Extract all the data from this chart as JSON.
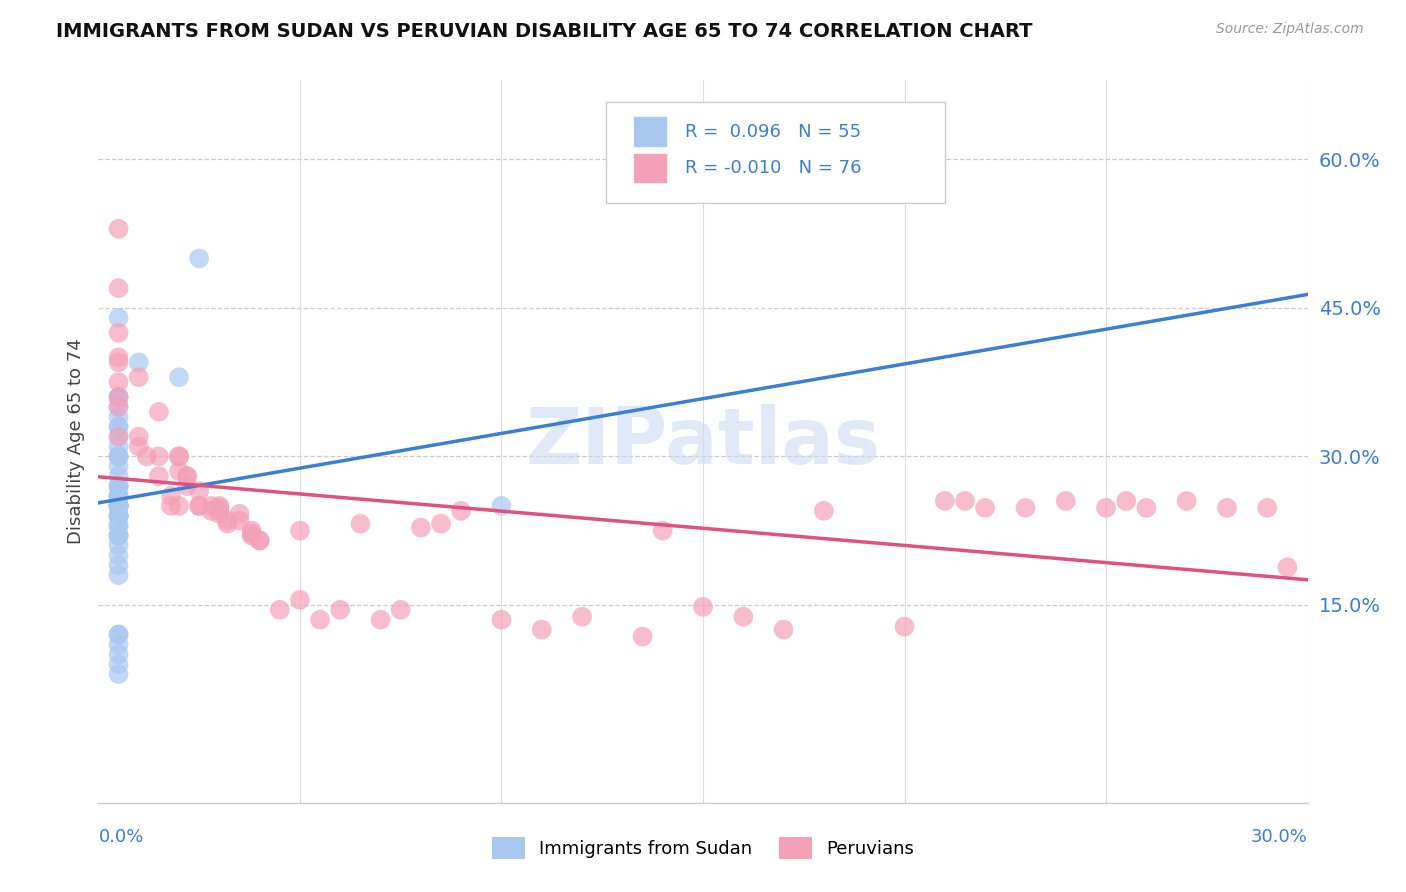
{
  "title": "IMMIGRANTS FROM SUDAN VS PERUVIAN DISABILITY AGE 65 TO 74 CORRELATION CHART",
  "source": "Source: ZipAtlas.com",
  "ylabel": "Disability Age 65 to 74",
  "ytick_labels": [
    "15.0%",
    "30.0%",
    "45.0%",
    "60.0%"
  ],
  "ytick_values": [
    0.15,
    0.3,
    0.45,
    0.6
  ],
  "xlim": [
    0.0,
    0.3
  ],
  "ylim": [
    -0.05,
    0.68
  ],
  "watermark": "ZIPatlas",
  "color_blue": "#a8c8f0",
  "color_pink": "#f4a0b8",
  "trendline_blue": "#3a7fd5",
  "trendline_pink": "#e05080",
  "trendline_dashed_color": "#b0b8c8",
  "sudan_x": [
    0.01,
    0.025,
    0.005,
    0.005,
    0.005,
    0.005,
    0.005,
    0.005,
    0.005,
    0.005,
    0.005,
    0.005,
    0.005,
    0.005,
    0.005,
    0.005,
    0.005,
    0.005,
    0.005,
    0.005,
    0.005,
    0.005,
    0.005,
    0.005,
    0.005,
    0.005,
    0.005,
    0.005,
    0.005,
    0.005,
    0.005,
    0.005,
    0.005,
    0.005,
    0.005,
    0.02,
    0.005,
    0.005,
    0.005,
    0.005,
    0.005,
    0.005,
    0.005,
    0.005,
    0.005,
    0.005,
    0.005,
    0.005,
    0.005,
    0.1,
    0.005,
    0.005,
    0.005,
    0.005,
    0.005
  ],
  "sudan_y": [
    0.395,
    0.5,
    0.44,
    0.36,
    0.31,
    0.34,
    0.3,
    0.36,
    0.33,
    0.33,
    0.32,
    0.3,
    0.25,
    0.28,
    0.3,
    0.29,
    0.27,
    0.25,
    0.27,
    0.25,
    0.24,
    0.23,
    0.22,
    0.22,
    0.22,
    0.21,
    0.12,
    0.11,
    0.12,
    0.1,
    0.09,
    0.08,
    0.23,
    0.24,
    0.25,
    0.38,
    0.26,
    0.27,
    0.25,
    0.24,
    0.25,
    0.26,
    0.26,
    0.25,
    0.24,
    0.2,
    0.35,
    0.19,
    0.18,
    0.25,
    0.25,
    0.26,
    0.25,
    0.24,
    0.25
  ],
  "peru_x": [
    0.005,
    0.005,
    0.005,
    0.005,
    0.005,
    0.005,
    0.005,
    0.005,
    0.005,
    0.01,
    0.01,
    0.01,
    0.012,
    0.015,
    0.015,
    0.015,
    0.018,
    0.018,
    0.02,
    0.02,
    0.02,
    0.02,
    0.022,
    0.022,
    0.022,
    0.025,
    0.025,
    0.025,
    0.028,
    0.028,
    0.03,
    0.03,
    0.03,
    0.03,
    0.032,
    0.032,
    0.035,
    0.035,
    0.038,
    0.038,
    0.038,
    0.04,
    0.04,
    0.045,
    0.05,
    0.05,
    0.055,
    0.06,
    0.065,
    0.07,
    0.075,
    0.08,
    0.085,
    0.09,
    0.1,
    0.11,
    0.12,
    0.135,
    0.14,
    0.15,
    0.16,
    0.17,
    0.18,
    0.2,
    0.21,
    0.215,
    0.22,
    0.23,
    0.24,
    0.25,
    0.255,
    0.26,
    0.27,
    0.28,
    0.29,
    0.295
  ],
  "peru_y": [
    0.53,
    0.47,
    0.425,
    0.395,
    0.36,
    0.35,
    0.32,
    0.4,
    0.375,
    0.31,
    0.32,
    0.38,
    0.3,
    0.345,
    0.3,
    0.28,
    0.26,
    0.25,
    0.25,
    0.3,
    0.285,
    0.3,
    0.27,
    0.28,
    0.28,
    0.265,
    0.25,
    0.25,
    0.25,
    0.245,
    0.25,
    0.248,
    0.245,
    0.242,
    0.232,
    0.235,
    0.242,
    0.235,
    0.225,
    0.222,
    0.22,
    0.215,
    0.215,
    0.145,
    0.155,
    0.225,
    0.135,
    0.145,
    0.232,
    0.135,
    0.145,
    0.228,
    0.232,
    0.245,
    0.135,
    0.125,
    0.138,
    0.118,
    0.225,
    0.148,
    0.138,
    0.125,
    0.245,
    0.128,
    0.255,
    0.255,
    0.248,
    0.248,
    0.255,
    0.248,
    0.255,
    0.248,
    0.255,
    0.248,
    0.248,
    0.188
  ],
  "legend_line1": "R =  0.096   N = 55",
  "legend_line2": "R = -0.010   N = 76",
  "legend_color": "#3a7fd5",
  "bottom_legend1": "Immigrants from Sudan",
  "bottom_legend2": "Peruvians"
}
